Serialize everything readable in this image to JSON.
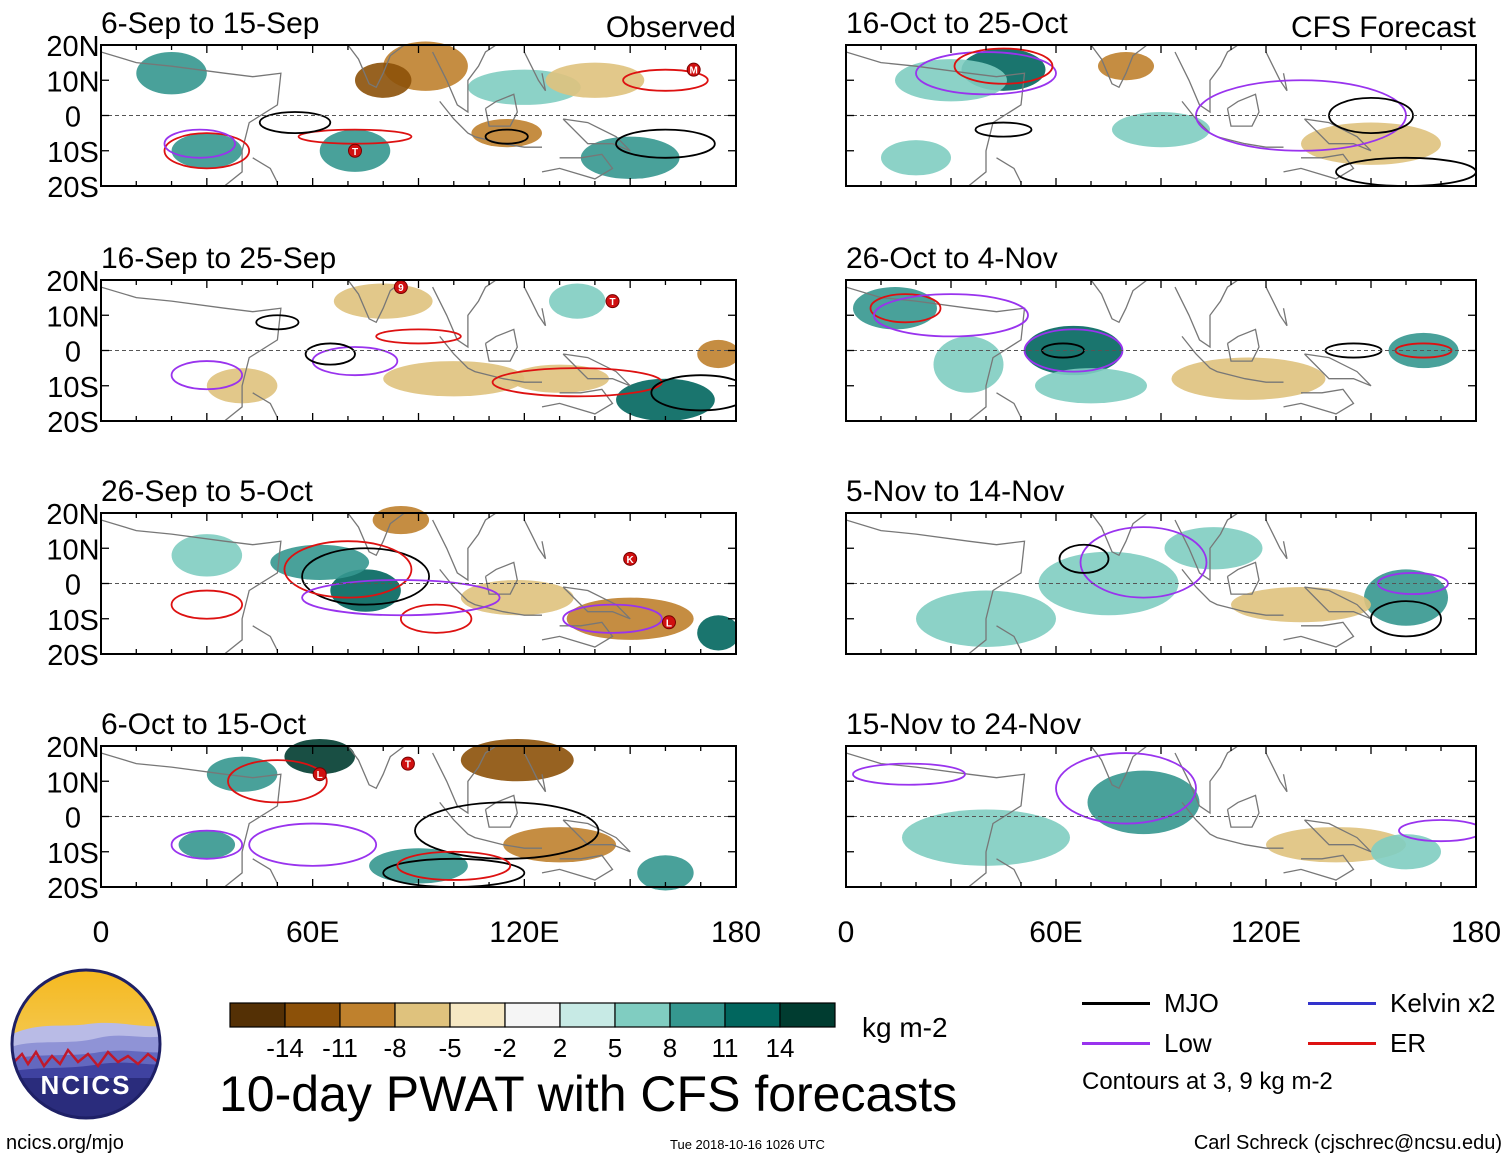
{
  "figure": {
    "title": "10-day PWAT with CFS forecasts",
    "units": "kg m-2",
    "colors": {
      "mjo": "#000000",
      "low": "#9933ee",
      "kelvin": "#3333cc",
      "er": "#dd1111",
      "land_outline": "#777777"
    }
  },
  "chart_data": [
    {
      "type": "heatmap",
      "title": "6-Sep to 15-Sep",
      "label": "Observed",
      "period": "observed",
      "ytick_labels": [
        "20N",
        "10N",
        "0",
        "10S",
        "20S"
      ],
      "xtick_labels": [],
      "ylim": [
        -20,
        20
      ],
      "xlim": [
        0,
        180
      ],
      "storms": [
        {
          "lon": 72,
          "lat": -10,
          "label": "T"
        },
        {
          "lon": 168,
          "lat": 13,
          "label": "M"
        }
      ]
    },
    {
      "type": "heatmap",
      "title": "16-Sep to 25-Sep",
      "label": "",
      "period": "observed",
      "ytick_labels": [
        "20N",
        "10N",
        "0",
        "10S",
        "20S"
      ],
      "xtick_labels": [],
      "ylim": [
        -20,
        20
      ],
      "xlim": [
        0,
        180
      ],
      "storms": [
        {
          "lon": 85,
          "lat": 18,
          "label": "9"
        },
        {
          "lon": 145,
          "lat": 14,
          "label": "T"
        }
      ]
    },
    {
      "type": "heatmap",
      "title": "26-Sep to 5-Oct",
      "label": "",
      "period": "observed",
      "ytick_labels": [
        "20N",
        "10N",
        "0",
        "10S",
        "20S"
      ],
      "xtick_labels": [],
      "ylim": [
        -20,
        20
      ],
      "xlim": [
        0,
        180
      ],
      "storms": [
        {
          "lon": 150,
          "lat": 7,
          "label": "K"
        },
        {
          "lon": 161,
          "lat": -11,
          "label": "L"
        }
      ]
    },
    {
      "type": "heatmap",
      "title": "6-Oct to 15-Oct",
      "label": "",
      "period": "observed",
      "ytick_labels": [
        "20N",
        "10N",
        "0",
        "10S",
        "20S"
      ],
      "xtick_labels": [
        "0",
        "60E",
        "120E",
        "180"
      ],
      "ylim": [
        -20,
        20
      ],
      "xlim": [
        0,
        180
      ],
      "storms": [
        {
          "lon": 62,
          "lat": 12,
          "label": "L"
        },
        {
          "lon": 87,
          "lat": 15,
          "label": "T"
        }
      ]
    },
    {
      "type": "heatmap",
      "title": "16-Oct to 25-Oct",
      "label": "CFS Forecast",
      "period": "forecast",
      "ytick_labels": [],
      "xtick_labels": [],
      "ylim": [
        -20,
        20
      ],
      "xlim": [
        0,
        180
      ],
      "storms": []
    },
    {
      "type": "heatmap",
      "title": "26-Oct to 4-Nov",
      "label": "",
      "period": "forecast",
      "ytick_labels": [],
      "xtick_labels": [],
      "ylim": [
        -20,
        20
      ],
      "xlim": [
        0,
        180
      ],
      "storms": []
    },
    {
      "type": "heatmap",
      "title": "5-Nov to 14-Nov",
      "label": "",
      "period": "forecast",
      "ytick_labels": [],
      "xtick_labels": [],
      "ylim": [
        -20,
        20
      ],
      "xlim": [
        0,
        180
      ],
      "storms": []
    },
    {
      "type": "heatmap",
      "title": "15-Nov to 24-Nov",
      "label": "",
      "period": "forecast",
      "ytick_labels": [],
      "xtick_labels": [
        "0",
        "60E",
        "120E",
        "180"
      ],
      "ylim": [
        -20,
        20
      ],
      "xlim": [
        0,
        180
      ],
      "storms": []
    }
  ],
  "colorbar": {
    "labels": [
      "-14",
      "-11",
      "-8",
      "-5",
      "-2",
      "2",
      "5",
      "8",
      "11",
      "14"
    ],
    "colors": [
      "#543005",
      "#8c5109",
      "#bf812d",
      "#dfc27d",
      "#f6e8c3",
      "#f5f5f5",
      "#c7eae5",
      "#80cdc1",
      "#35978f",
      "#01665e",
      "#003c30"
    ],
    "unit": "kg m-2"
  },
  "legend": {
    "items": [
      {
        "name": "MJO",
        "color": "#000000"
      },
      {
        "name": "Kelvin x2",
        "color": "#3333cc"
      },
      {
        "name": "Low",
        "color": "#9933ee"
      },
      {
        "name": "ER",
        "color": "#dd1111"
      }
    ],
    "note": "Contours at 3, 9 kg m-2"
  },
  "logo": {
    "text": "NCICS"
  },
  "footer": {
    "url": "ncics.org/mjo",
    "timestamp": "Tue 2018-10-16 1026 UTC",
    "author": "Carl Schreck (cjschrec@ncsu.edu)"
  }
}
